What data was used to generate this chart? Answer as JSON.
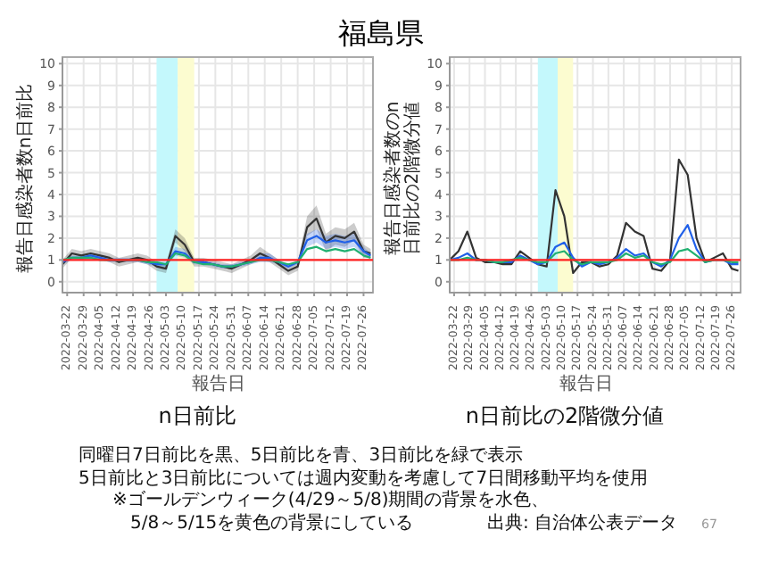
{
  "chart_data": [
    {
      "type": "line",
      "title": "福島県",
      "subtitle": "n日前比",
      "xlabel": "報告日",
      "ylabel": "報告日感染者数n日前比",
      "x": [
        "2022-03-20",
        "2022-03-24",
        "2022-03-28",
        "2022-04-01",
        "2022-04-05",
        "2022-04-09",
        "2022-04-13",
        "2022-04-17",
        "2022-04-21",
        "2022-04-25",
        "2022-04-29",
        "2022-05-03",
        "2022-05-07",
        "2022-05-11",
        "2022-05-15",
        "2022-05-19",
        "2022-05-23",
        "2022-05-27",
        "2022-05-31",
        "2022-06-04",
        "2022-06-08",
        "2022-06-12",
        "2022-06-16",
        "2022-06-20",
        "2022-06-24",
        "2022-06-28",
        "2022-07-02",
        "2022-07-06",
        "2022-07-10",
        "2022-07-14",
        "2022-07-18",
        "2022-07-22",
        "2022-07-26",
        "2022-07-29"
      ],
      "series": [
        {
          "color": "#333333",
          "values": [
            0.8,
            1.3,
            1.2,
            1.3,
            1.2,
            1.1,
            0.9,
            1.0,
            1.1,
            1.0,
            0.7,
            0.6,
            2.1,
            1.7,
            0.9,
            0.9,
            0.8,
            0.7,
            0.6,
            0.8,
            1.0,
            1.3,
            1.1,
            0.8,
            0.5,
            0.7,
            2.5,
            2.9,
            1.8,
            2.1,
            2.0,
            2.3,
            1.4,
            1.3
          ],
          "lower": [
            0.6,
            1.1,
            1.0,
            1.1,
            1.0,
            0.9,
            0.7,
            0.8,
            0.9,
            0.8,
            0.5,
            0.4,
            1.8,
            1.4,
            0.7,
            0.7,
            0.6,
            0.5,
            0.4,
            0.6,
            0.8,
            1.0,
            0.9,
            0.6,
            0.3,
            0.5,
            2.1,
            2.4,
            1.4,
            1.7,
            1.6,
            1.9,
            1.1,
            1.1
          ],
          "upper": [
            1.0,
            1.5,
            1.4,
            1.5,
            1.4,
            1.3,
            1.1,
            1.2,
            1.3,
            1.2,
            0.9,
            0.8,
            2.4,
            2.0,
            1.1,
            1.1,
            1.0,
            0.9,
            0.8,
            1.0,
            1.2,
            1.6,
            1.3,
            1.0,
            0.7,
            0.9,
            3.0,
            3.5,
            2.2,
            2.5,
            2.4,
            2.7,
            1.7,
            1.5
          ]
        },
        {
          "color": "#2060e8",
          "values": [
            0.9,
            1.1,
            1.1,
            1.2,
            1.1,
            1.0,
            1.0,
            1.0,
            1.0,
            0.9,
            0.8,
            0.8,
            1.4,
            1.3,
            0.9,
            0.9,
            0.8,
            0.7,
            0.7,
            0.8,
            0.9,
            1.1,
            1.1,
            0.9,
            0.7,
            0.9,
            1.9,
            2.1,
            1.8,
            1.9,
            1.8,
            1.9,
            1.4,
            1.2
          ],
          "lower": [
            0.8,
            1.0,
            1.0,
            1.1,
            1.0,
            0.9,
            0.9,
            0.9,
            0.9,
            0.8,
            0.7,
            0.7,
            1.2,
            1.1,
            0.8,
            0.8,
            0.7,
            0.6,
            0.6,
            0.7,
            0.8,
            0.9,
            0.9,
            0.8,
            0.6,
            0.8,
            1.6,
            1.8,
            1.5,
            1.6,
            1.5,
            1.6,
            1.2,
            1.1
          ],
          "upper": [
            1.0,
            1.2,
            1.2,
            1.3,
            1.2,
            1.1,
            1.1,
            1.1,
            1.1,
            1.0,
            0.9,
            0.9,
            1.6,
            1.5,
            1.0,
            1.0,
            0.9,
            0.8,
            0.8,
            0.9,
            1.0,
            1.3,
            1.3,
            1.0,
            0.8,
            1.0,
            2.2,
            2.4,
            2.1,
            2.2,
            2.1,
            2.2,
            1.6,
            1.3
          ]
        },
        {
          "color": "#20b070",
          "values": [
            1.0,
            1.1,
            1.1,
            1.1,
            1.0,
            1.0,
            1.0,
            1.0,
            1.0,
            0.9,
            0.9,
            0.8,
            1.3,
            1.2,
            0.9,
            0.8,
            0.8,
            0.7,
            0.7,
            0.8,
            0.9,
            1.0,
            1.0,
            0.9,
            0.8,
            0.9,
            1.5,
            1.6,
            1.4,
            1.5,
            1.4,
            1.5,
            1.2,
            1.1
          ]
        }
      ],
      "xlim": [
        "2022-03-20",
        "2022-07-30"
      ],
      "xticks": [
        "2022-03-22",
        "2022-03-29",
        "2022-04-05",
        "2022-04-12",
        "2022-04-19",
        "2022-04-26",
        "2022-05-03",
        "2022-05-10",
        "2022-05-17",
        "2022-05-24",
        "2022-05-31",
        "2022-06-07",
        "2022-06-14",
        "2022-06-21",
        "2022-06-28",
        "2022-07-05",
        "2022-07-12",
        "2022-07-19",
        "2022-07-26"
      ],
      "ylim": [
        -0.5,
        10.3
      ],
      "yticks": [
        0,
        1,
        2,
        3,
        4,
        5,
        6,
        7,
        8,
        9,
        10
      ],
      "grid": true,
      "ref_lines": [
        {
          "axis": "y",
          "value": 1,
          "color": "#ff2020"
        }
      ],
      "bands": [
        {
          "axis": "x",
          "from": "2022-04-29",
          "to": "2022-05-08",
          "color": "#c4f8fc"
        },
        {
          "axis": "x",
          "from": "2022-05-08",
          "to": "2022-05-15",
          "color": "#fcfcd0"
        }
      ],
      "annotations": [
        "同曜日7日前比を黒、5日前比を青、3日前比を緑で表示",
        "5日前比と3日前比については週内変動を考慮して7日間移動平均を使用",
        "※ゴールデンウィーク(4/29～5/8)期間の背景を水色、",
        "5/8～5/15を黄色の背景にしている",
        "出典: 自治体公表データ",
        "67"
      ]
    },
    {
      "type": "line",
      "subtitle": "n日前比の2階微分値",
      "xlabel": "報告日",
      "ylabel": "報告日感染者数のn日前比の2階微分値",
      "x": [
        "2022-03-20",
        "2022-03-24",
        "2022-03-28",
        "2022-04-01",
        "2022-04-05",
        "2022-04-09",
        "2022-04-13",
        "2022-04-17",
        "2022-04-21",
        "2022-04-25",
        "2022-04-29",
        "2022-05-03",
        "2022-05-07",
        "2022-05-11",
        "2022-05-15",
        "2022-05-19",
        "2022-05-23",
        "2022-05-27",
        "2022-05-31",
        "2022-06-04",
        "2022-06-08",
        "2022-06-12",
        "2022-06-16",
        "2022-06-20",
        "2022-06-24",
        "2022-06-28",
        "2022-07-02",
        "2022-07-06",
        "2022-07-10",
        "2022-07-14",
        "2022-07-18",
        "2022-07-22",
        "2022-07-26",
        "2022-07-29"
      ],
      "series": [
        {
          "color": "#333333",
          "values": [
            1.0,
            1.4,
            2.3,
            1.1,
            0.9,
            0.9,
            0.8,
            0.8,
            1.4,
            1.1,
            0.8,
            0.7,
            4.2,
            3.0,
            0.4,
            0.9,
            0.9,
            0.7,
            0.8,
            1.2,
            2.7,
            2.3,
            2.1,
            0.6,
            0.5,
            1.0,
            5.6,
            4.9,
            2.0,
            0.9,
            1.1,
            1.3,
            0.6,
            0.5
          ]
        },
        {
          "color": "#2060e8",
          "values": [
            1.0,
            1.1,
            1.3,
            1.0,
            1.0,
            0.9,
            0.9,
            0.9,
            1.2,
            1.0,
            0.8,
            0.9,
            1.6,
            1.8,
            1.1,
            0.7,
            0.9,
            0.8,
            0.9,
            1.1,
            1.5,
            1.2,
            1.3,
            0.9,
            0.7,
            1.0,
            2.0,
            2.6,
            1.5,
            0.9,
            1.0,
            1.0,
            0.8,
            0.8
          ]
        },
        {
          "color": "#20b070",
          "values": [
            1.0,
            1.0,
            1.1,
            1.0,
            1.0,
            0.9,
            0.9,
            1.0,
            1.1,
            1.0,
            0.9,
            0.9,
            1.3,
            1.4,
            1.0,
            0.8,
            0.9,
            0.9,
            0.9,
            1.0,
            1.3,
            1.1,
            1.2,
            0.9,
            0.8,
            0.9,
            1.4,
            1.5,
            1.2,
            0.9,
            1.0,
            1.0,
            0.9,
            0.9
          ]
        }
      ],
      "xlim": [
        "2022-03-20",
        "2022-07-30"
      ],
      "xticks": [
        "2022-03-22",
        "2022-03-29",
        "2022-04-05",
        "2022-04-12",
        "2022-04-19",
        "2022-04-26",
        "2022-05-03",
        "2022-05-10",
        "2022-05-17",
        "2022-05-24",
        "2022-05-31",
        "2022-06-07",
        "2022-06-14",
        "2022-06-21",
        "2022-06-28",
        "2022-07-05",
        "2022-07-12",
        "2022-07-19",
        "2022-07-26"
      ],
      "ylim": [
        -0.5,
        10.3
      ],
      "yticks": [
        0,
        1,
        2,
        3,
        4,
        5,
        6,
        7,
        8,
        9,
        10
      ],
      "grid": true,
      "ref_lines": [
        {
          "axis": "y",
          "value": 1,
          "color": "#ff2020"
        }
      ],
      "bands": [
        {
          "axis": "x",
          "from": "2022-04-29",
          "to": "2022-05-08",
          "color": "#c4f8fc"
        },
        {
          "axis": "x",
          "from": "2022-05-08",
          "to": "2022-05-15",
          "color": "#fcfcd0"
        }
      ]
    }
  ]
}
